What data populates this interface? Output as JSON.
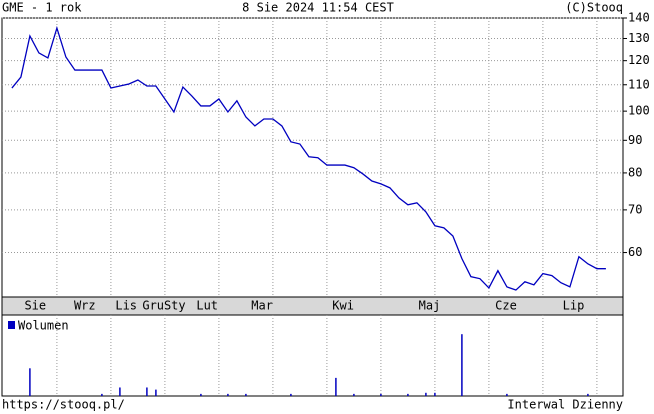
{
  "chart_data": {
    "type": "line",
    "title": "GME - 1 rok",
    "subtitle": "8 Sie 2024 11:54 CEST",
    "source": "(C)Stooq",
    "footer_left": "https://stooq.pl/",
    "footer_right": "Interwal Dzienny",
    "log_scale": true,
    "grid": true,
    "x": [
      0,
      1,
      2,
      3,
      4,
      5,
      6,
      7,
      8,
      9,
      10,
      11,
      12,
      13,
      14,
      15,
      16,
      17,
      18,
      19,
      20,
      21,
      22,
      23,
      24,
      25,
      26,
      27,
      28,
      29,
      30,
      31,
      32,
      33,
      34,
      35,
      36,
      37,
      38,
      39,
      40,
      41,
      42,
      43,
      44,
      45,
      46,
      47,
      48,
      49,
      50,
      51,
      52,
      53,
      54,
      55,
      56,
      57,
      58,
      59,
      60,
      61,
      62,
      63,
      64,
      65,
      66
    ],
    "xlim": [
      -1.1,
      67.9
    ],
    "xticks": [
      {
        "value": 2.6,
        "label": "Sie"
      },
      {
        "value": 8.1,
        "label": "Wrz"
      },
      {
        "value": 12.7,
        "label": "Lis"
      },
      {
        "value": 15.7,
        "label": "Gru"
      },
      {
        "value": 18.1,
        "label": "Sty"
      },
      {
        "value": 21.7,
        "label": "Lut"
      },
      {
        "value": 27.8,
        "label": "Mar"
      },
      {
        "value": 36.8,
        "label": "Kwi"
      },
      {
        "value": 46.4,
        "label": "Maj"
      },
      {
        "value": 54.9,
        "label": "Cze"
      },
      {
        "value": 62.4,
        "label": "Lip"
      }
    ],
    "xgrid": [
      5,
      11,
      17,
      23,
      29,
      35,
      41,
      47,
      53,
      59,
      65
    ],
    "ylim": [
      51.1,
      140
    ],
    "yticks": [
      60,
      70,
      80,
      90,
      100,
      110,
      120,
      130,
      140
    ],
    "series": [
      {
        "color": "#0000c0",
        "values": [
          108.7,
          113.1,
          131.2,
          123.4,
          121.2,
          135.0,
          121.6,
          116.0,
          116.0,
          116.0,
          116.0,
          108.7,
          109.5,
          110.3,
          111.9,
          109.5,
          109.5,
          104.5,
          99.7,
          109.1,
          105.6,
          101.9,
          101.9,
          104.5,
          99.7,
          103.8,
          97.9,
          94.8,
          97.2,
          97.2,
          94.8,
          89.5,
          88.8,
          84.8,
          84.5,
          82.3,
          82.3,
          82.3,
          81.5,
          79.7,
          77.7,
          76.9,
          75.8,
          73.1,
          71.3,
          71.8,
          69.5,
          66.1,
          65.6,
          63.7,
          58.7,
          55.0,
          54.6,
          52.8,
          56.2,
          53.0,
          52.4,
          54.0,
          53.4,
          55.6,
          55.2,
          53.8,
          53.0,
          59.1,
          57.6,
          56.6,
          56.6
        ]
      }
    ],
    "volume": {
      "name": "Wolumen",
      "color": "#0000c0",
      "ylim": [
        0,
        76
      ],
      "values": [
        0,
        0,
        26,
        0,
        0,
        0,
        0,
        0,
        0,
        0,
        2,
        0,
        8,
        0,
        0,
        8,
        6,
        0,
        0,
        0,
        0,
        2,
        0,
        0,
        2,
        0,
        2,
        0,
        0,
        0,
        0,
        2,
        0,
        0,
        0,
        0,
        17,
        0,
        2,
        0,
        0,
        2,
        0,
        0,
        2,
        0,
        3,
        3,
        0,
        0,
        58,
        0,
        0,
        0,
        0,
        2,
        0,
        0,
        0,
        0,
        0,
        0,
        0,
        0,
        2,
        0,
        0
      ]
    }
  }
}
